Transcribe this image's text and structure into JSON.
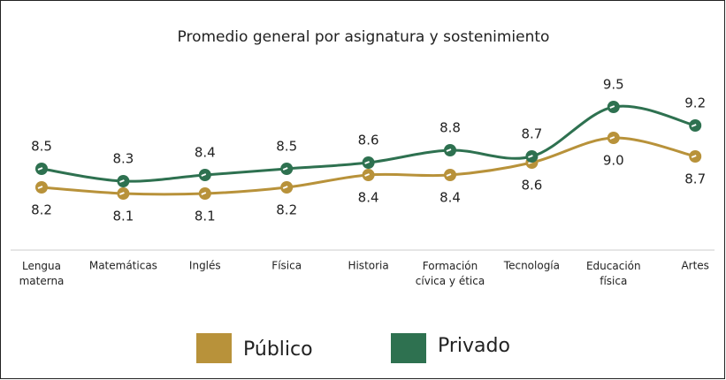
{
  "chart_data": {
    "type": "line",
    "title": "Promedio general por asignatura y sostenimiento",
    "categories": [
      "Lengua materna",
      "Matemáticas",
      "Inglés",
      "Física",
      "Historia",
      "Formación cívica y ética",
      "Tecnología",
      "Educación física",
      "Artes"
    ],
    "series": [
      {
        "name": "Público",
        "color": "#b8923a",
        "values": [
          8.2,
          8.1,
          8.1,
          8.2,
          8.4,
          8.4,
          8.6,
          9.0,
          8.7
        ],
        "value_labels": [
          "8.2",
          "8.1",
          "8.1",
          "8.2",
          "8.4",
          "8.4",
          "8.6",
          "9.0",
          "8.7"
        ]
      },
      {
        "name": "Privado",
        "color": "#2e7150",
        "values": [
          8.5,
          8.3,
          8.4,
          8.5,
          8.6,
          8.8,
          8.7,
          9.5,
          9.2
        ],
        "value_labels": [
          "8.5",
          "8.3",
          "8.4",
          "8.5",
          "8.6",
          "8.8",
          "8.7",
          "9.5",
          "9.2"
        ]
      }
    ],
    "legend": "bottom"
  }
}
